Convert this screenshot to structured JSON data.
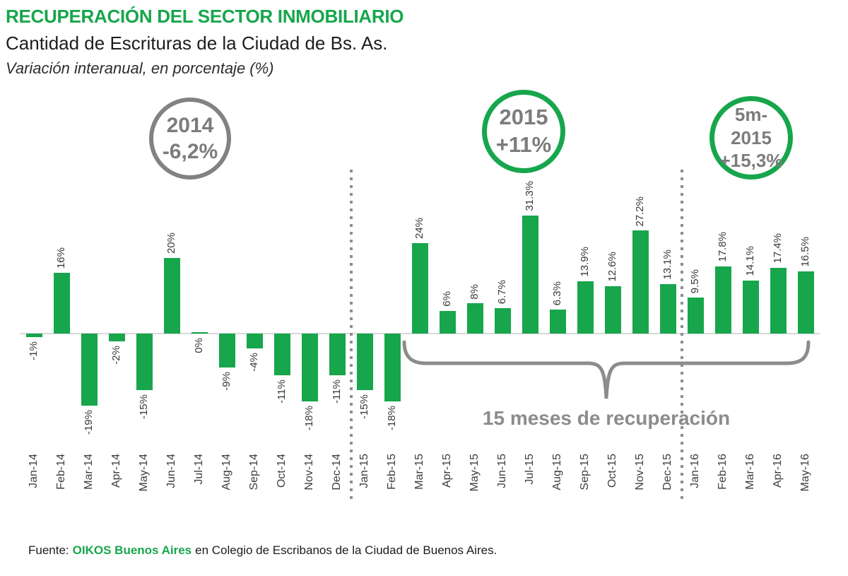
{
  "header": {
    "title": "RECUPERACIÓN DEL SECTOR INMOBILIARIO",
    "subtitle": "Cantidad de Escrituras de la Ciudad de Bs. As.",
    "subnote": "Variación interanual, en porcentaje (%)"
  },
  "footer": {
    "prefix": "Fuente:",
    "source": "OIKOS Buenos Aires",
    "suffix": "en Colegio de Escribanos de la Ciudad de Buenos Aires."
  },
  "colors": {
    "bar_green": "#17a64c",
    "title_green": "#17a64c",
    "annotation_gray": "#828282",
    "brace_gray": "#8c8c8c",
    "separator_gray": "#8f8f8f",
    "axis_gray": "#d9d9d9"
  },
  "chart_data": {
    "type": "bar",
    "title": "Cantidad de Escrituras de la Ciudad de Bs. As.",
    "ylabel": "Variación interanual (%)",
    "ylim": [
      -19,
      31.3
    ],
    "grid": false,
    "legend": "none",
    "categories": [
      "Jan-14",
      "Feb-14",
      "Mar-14",
      "Apr-14",
      "May-14",
      "Jun-14",
      "Jul-14",
      "Aug-14",
      "Sep-14",
      "Oct-14",
      "Nov-14",
      "Dec-14",
      "Jan-15",
      "Feb-15",
      "Mar-15",
      "Apr-15",
      "May-15",
      "Jun-15",
      "Jul-15",
      "Aug-15",
      "Sep-15",
      "Oct-15",
      "Nov-15",
      "Dec-15",
      "Jan-16",
      "Feb-16",
      "Mar-16",
      "Apr-16",
      "May-16"
    ],
    "values": [
      -1,
      16,
      -19,
      -2,
      -15,
      20,
      0,
      -9,
      -4,
      -11,
      -18,
      -11,
      -15,
      -18,
      24,
      6,
      8,
      6.7,
      31.3,
      6.3,
      13.9,
      12.6,
      27.2,
      13.1,
      9.5,
      17.8,
      14.1,
      17.4,
      16.5
    ],
    "value_labels": [
      "-1%",
      "16%",
      "-19%",
      "-2%",
      "-15%",
      "20%",
      "0%",
      "-9%",
      "-4%",
      "-11%",
      "-18%",
      "-11%",
      "-15%",
      "-18%",
      "24%",
      "6%",
      "8%",
      "6.7%",
      "31.3%",
      "6.3%",
      "13.9%",
      "12.6%",
      "27.2%",
      "13.1%",
      "9.5%",
      "17.8%",
      "14.1%",
      "17.4%",
      "16.5%"
    ],
    "separator_after_indices": [
      11,
      23
    ],
    "annotations": {
      "circles": [
        {
          "line1": "2014",
          "line2": "-6,2%",
          "style": "gray"
        },
        {
          "line1": "2015",
          "line2": "+11%",
          "style": "green"
        },
        {
          "line1": "5m-2015",
          "line2": "+15,3%",
          "style": "green"
        }
      ],
      "brace_label": "15 meses de recuperación"
    }
  }
}
